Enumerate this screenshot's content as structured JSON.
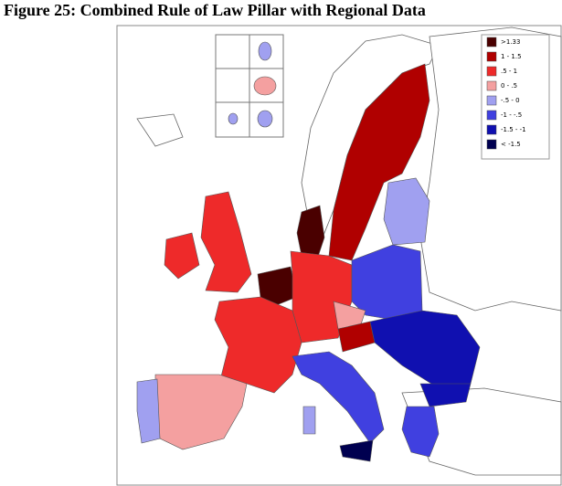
{
  "title": "Figure 25: Combined Rule of Law Pillar with Regional Data",
  "legend": [
    {
      "label": ">1.33",
      "color": "#4a0000"
    },
    {
      "label": "1 - 1.5",
      "color": "#b00000"
    },
    {
      "label": ".5 - 1",
      "color": "#ee2a2a"
    },
    {
      "label": "0 - .5",
      "color": "#f4a0a0"
    },
    {
      "label": "-.5 - 0",
      "color": "#a0a0f0"
    },
    {
      "label": "-1 - -.5",
      "color": "#4040e0"
    },
    {
      "label": "-1.5 - -1",
      "color": "#1010b0"
    },
    {
      "label": "< -1.5",
      "color": "#000050"
    }
  ]
}
